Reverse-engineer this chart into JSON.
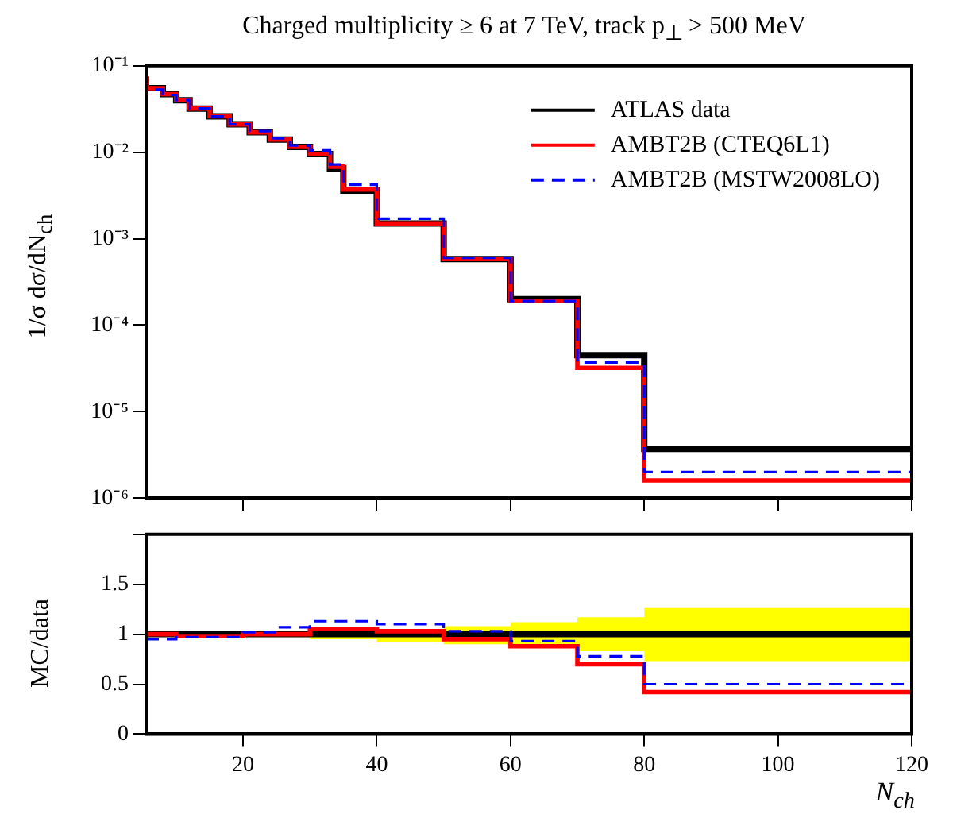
{
  "chart_data": [
    {
      "type": "step",
      "title": "Charged multiplicity ≥ 6 at 7 TeV, track p$_{⊥}$ > 500 MeV",
      "ylabel": "1/σ dσ/dN$_{ch}$",
      "log": "y",
      "legend": "top right",
      "tick_labels": "y",
      "xlim": [
        5.5,
        120
      ],
      "xticks": [
        20,
        40,
        60,
        80,
        100,
        120
      ],
      "ylim": [
        1e-06,
        0.1
      ],
      "yticks": [
        {
          "value": 1e-06,
          "label": "10⁻⁶"
        },
        {
          "value": 1e-05,
          "label": "10⁻⁵"
        },
        {
          "value": 0.0001,
          "label": "10⁻⁴"
        },
        {
          "value": 0.001,
          "label": "10⁻³"
        },
        {
          "value": 0.01,
          "label": "10⁻²"
        },
        {
          "value": 0.1,
          "label": "10⁻¹"
        }
      ],
      "series": [
        {
          "name": "ATLAS data",
          "color": "#000000",
          "line_style": "solid",
          "x": [
            5.5,
            8,
            10,
            12,
            15,
            18,
            21,
            24,
            27,
            30,
            33,
            35,
            40,
            50,
            60,
            70,
            80,
            100,
            120
          ],
          "values": [
            0.075,
            0.055,
            0.047,
            0.04,
            0.032,
            0.026,
            0.021,
            0.017,
            0.014,
            0.0115,
            0.0095,
            0.0065,
            0.0036,
            0.0015,
            0.00058,
            0.0002,
            4.5e-05,
            3.7e-06,
            3.7e-06
          ]
        },
        {
          "name": "AMBT2B (CTEQ6L1)",
          "color": "#ff0000",
          "line_style": "solid",
          "x": [
            5.5,
            8,
            10,
            12,
            15,
            18,
            21,
            24,
            27,
            30,
            33,
            35,
            40,
            50,
            60,
            70,
            80,
            100,
            120
          ],
          "values": [
            0.075,
            0.055,
            0.047,
            0.04,
            0.032,
            0.026,
            0.021,
            0.017,
            0.014,
            0.0115,
            0.0095,
            0.0068,
            0.0037,
            0.0015,
            0.00058,
            0.00019,
            3.2e-05,
            1.6e-06,
            1.6e-06
          ]
        },
        {
          "name": "AMBT2B (MSTW2008LO)",
          "color": "#0000ff",
          "line_style": "dashed",
          "x": [
            5.5,
            8,
            10,
            12,
            15,
            18,
            21,
            24,
            27,
            30,
            33,
            35,
            40,
            50,
            60,
            70,
            80,
            100,
            120
          ],
          "values": [
            0.072,
            0.053,
            0.046,
            0.04,
            0.032,
            0.026,
            0.021,
            0.0175,
            0.0145,
            0.012,
            0.0105,
            0.0072,
            0.0042,
            0.0017,
            0.0006,
            0.00019,
            3.7e-05,
            2e-06,
            2e-06
          ]
        }
      ]
    },
    {
      "type": "step",
      "xlabel": "N$_{ch}$",
      "ylabel": "MC/data",
      "xlim": [
        5.5,
        120
      ],
      "xticks": [
        20,
        40,
        60,
        80,
        100,
        120
      ],
      "ylim": [
        0,
        2
      ],
      "yticks": [
        0,
        0.5,
        1,
        1.5,
        {
          "value": 2,
          "label": null
        }
      ],
      "series": [
        {
          "color": "#000000",
          "line_style": "solid",
          "x": [
            5.5,
            20,
            30,
            40,
            50,
            60,
            70,
            80,
            100,
            120
          ],
          "values": [
            1,
            1,
            1,
            1,
            1,
            1,
            1,
            1,
            1,
            1
          ],
          "lower": [
            0.98,
            0.98,
            0.97,
            0.95,
            0.92,
            0.9,
            0.88,
            0.83,
            0.73,
            0.73
          ],
          "upper": [
            1.02,
            1.02,
            1.03,
            1.04,
            1.05,
            1.08,
            1.12,
            1.17,
            1.27,
            1.27
          ]
        },
        {
          "color": "#ff0000",
          "line_style": "solid",
          "x": [
            5.5,
            10,
            20,
            30,
            40,
            50,
            60,
            70,
            80,
            100,
            120
          ],
          "values": [
            1.0,
            1.0,
            0.98,
            1.0,
            1.05,
            1.03,
            0.95,
            0.88,
            0.7,
            0.42,
            0.42
          ]
        },
        {
          "color": "#0000ff",
          "line_style": "dashed",
          "x": [
            5.5,
            10,
            20,
            25,
            30,
            40,
            50,
            60,
            70,
            80,
            100,
            120
          ],
          "values": [
            0.95,
            0.95,
            0.97,
            1.02,
            1.07,
            1.13,
            1.1,
            1.03,
            0.93,
            0.78,
            0.5,
            0.5
          ]
        }
      ]
    }
  ]
}
